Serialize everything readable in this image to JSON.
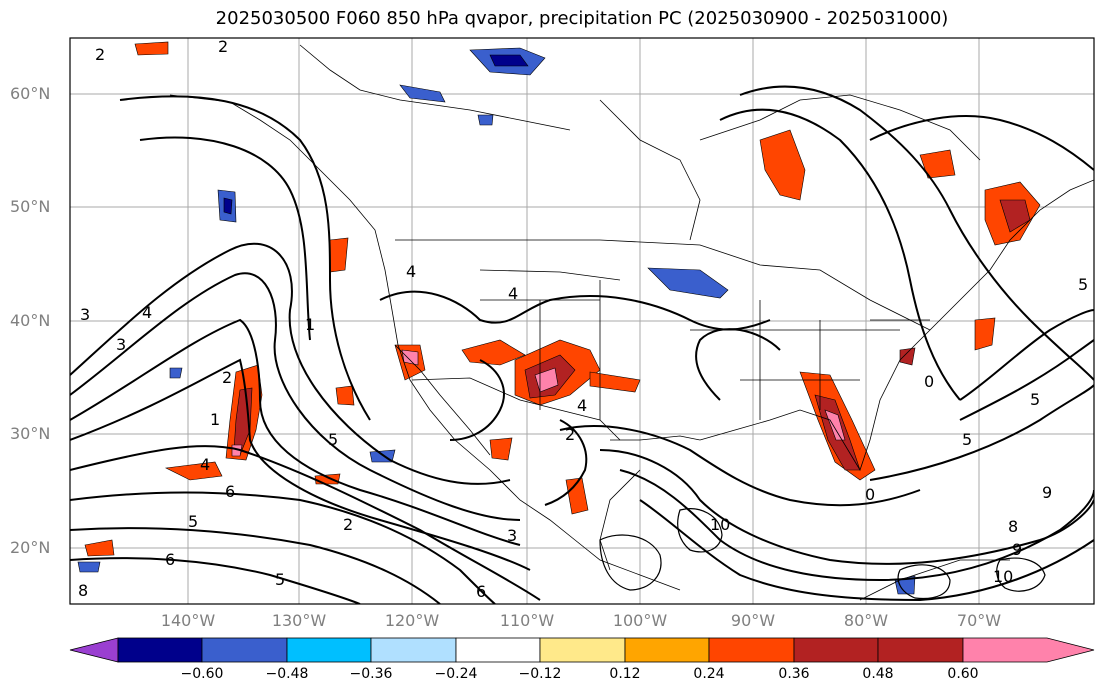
{
  "title": "2025030500 F060 850 hPa qvapor, precipitation PC (2025030900 - 2025031000)",
  "lat_labels": [
    "60°N",
    "50°N",
    "40°N",
    "30°N",
    "20°N"
  ],
  "lon_labels": [
    "140°W",
    "130°W",
    "120°W",
    "110°W",
    "100°W",
    "90°W",
    "80°W",
    "70°W"
  ],
  "colorbar": {
    "ticks": [
      "−0.60",
      "−0.48",
      "−0.36",
      "−0.24",
      "−0.12",
      "0.12",
      "0.24",
      "0.36",
      "0.48",
      "0.60"
    ],
    "colors": [
      "#9a3fd1",
      "#00008b",
      "#3a5fcd",
      "#00bfff",
      "#b0e0ff",
      "#ffffff",
      "#ffe98a",
      "#ffa500",
      "#ff4500",
      "#b22222",
      "#ff82ab"
    ]
  },
  "contour_labels": [
    "2",
    "2",
    "1",
    "3",
    "4",
    "4",
    "3",
    "2",
    "1",
    "5",
    "6",
    "5",
    "2",
    "3",
    "5",
    "6",
    "8",
    "4",
    "4",
    "4",
    "2",
    "0",
    "5",
    "5",
    "9",
    "10",
    "8",
    "9",
    "10",
    "0",
    "5",
    "6"
  ]
}
